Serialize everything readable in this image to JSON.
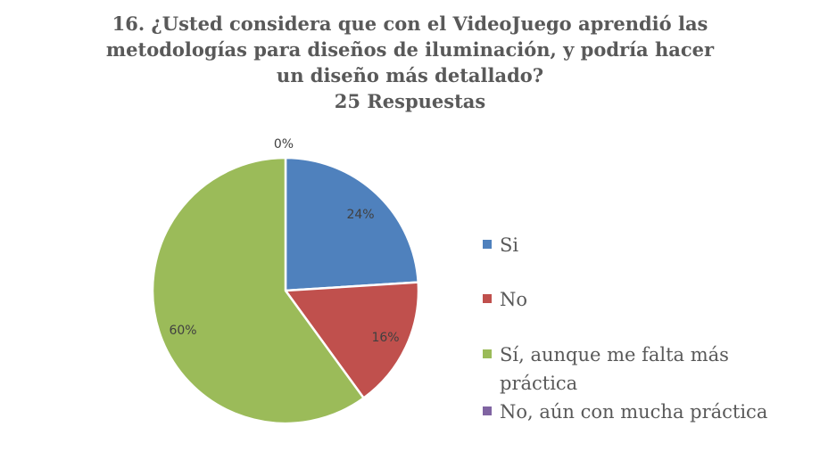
{
  "chart_data": {
    "type": "pie",
    "title": [
      "16. ¿Usted considera que con el VideoJuego aprendió las",
      "metodologías para diseños de iluminación, y podría hacer",
      "un diseño más detallado?",
      "25 Respuestas"
    ],
    "series": [
      {
        "categories": [
          "Si",
          "No",
          "Sí, aunque me falta más práctica",
          "No, aún con mucha práctica"
        ],
        "values": [
          24,
          16,
          60,
          0
        ],
        "labels": [
          "24%",
          "16%",
          "60%",
          "0%"
        ],
        "colors": [
          "#4f81bd",
          "#c0504d",
          "#9bbb59",
          "#8064a2"
        ]
      }
    ],
    "legend": {
      "position": "right",
      "entries": [
        [
          "Si"
        ],
        [
          "No"
        ],
        [
          "Sí, aunque me falta más",
          "práctica"
        ],
        [
          "No, aún con mucha práctica"
        ]
      ]
    }
  }
}
